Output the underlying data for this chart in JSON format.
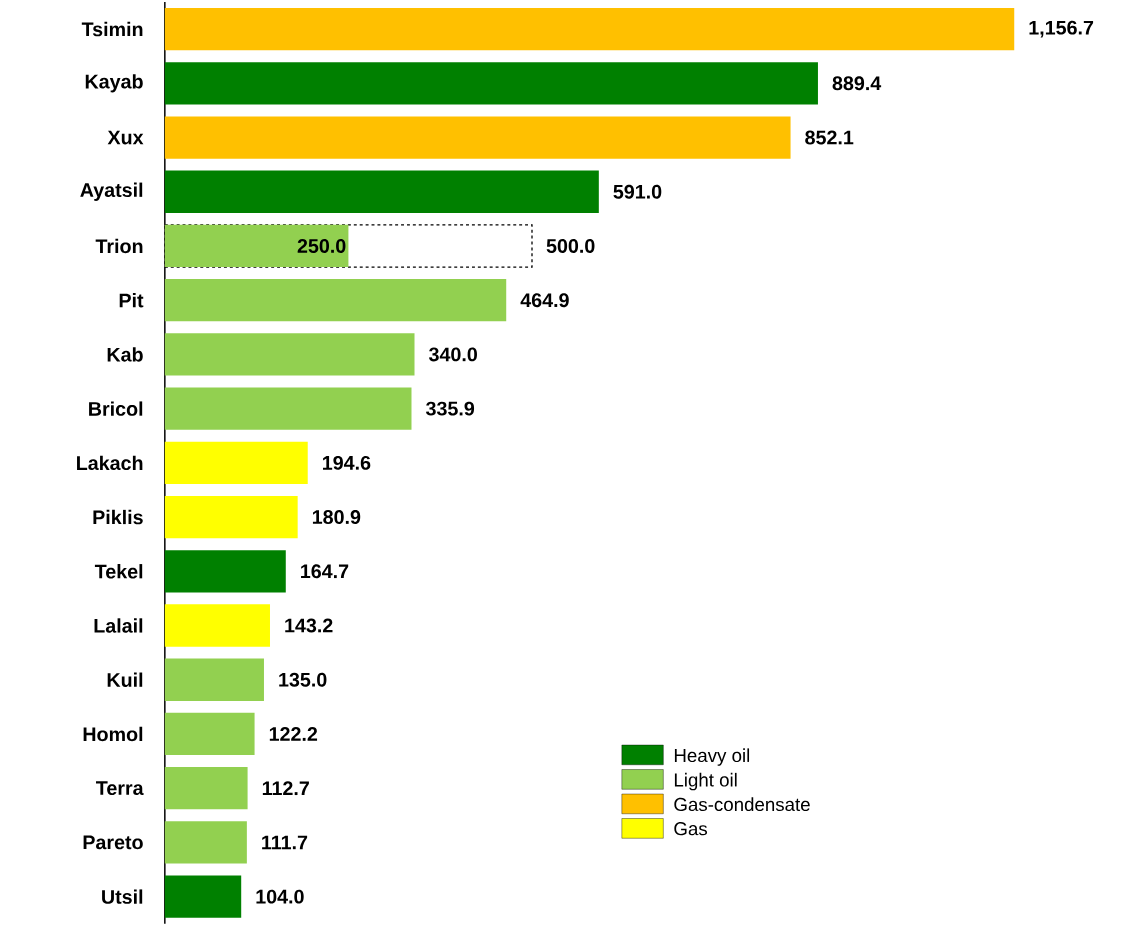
{
  "chart_data": {
    "type": "bar",
    "orientation": "horizontal",
    "legend": "bottom right",
    "categories": [
      "Tsimin",
      "Kayab",
      "Xux",
      "Ayatsil",
      "Trion",
      "Pit",
      "Kab",
      "Bricol",
      "Lakach",
      "Piklis",
      "Tekel",
      "Lalail",
      "Kuil",
      "Homol",
      "Terra",
      "Pareto",
      "Utsil"
    ],
    "series": [
      {
        "color": "#000000",
        "line_style": "dashed",
        "values": [
          null,
          null,
          null,
          null,
          500.0,
          null,
          null,
          null,
          null,
          null,
          null,
          null,
          null,
          null,
          null,
          null,
          null
        ],
        "value_labels": [
          null,
          null,
          null,
          null,
          "500.0",
          null,
          null,
          null,
          null,
          null,
          null,
          null,
          null,
          null,
          null,
          null,
          null
        ]
      },
      {
        "name": "Heavy oil",
        "color": "#008000",
        "values": [
          null,
          889.4,
          null,
          591.0,
          null,
          null,
          null,
          null,
          null,
          null,
          164.7,
          null,
          null,
          null,
          null,
          null,
          104.0
        ],
        "value_labels": [
          null,
          "889.4",
          null,
          "591.0",
          null,
          null,
          null,
          null,
          null,
          null,
          "164.7",
          null,
          null,
          null,
          null,
          null,
          "104.0"
        ]
      },
      {
        "name": "Light oil",
        "color": "#92d050",
        "values": [
          null,
          null,
          null,
          null,
          250.0,
          464.9,
          340.0,
          335.9,
          null,
          null,
          null,
          null,
          135.0,
          122.2,
          112.7,
          111.7,
          null
        ],
        "value_labels": [
          null,
          null,
          null,
          null,
          "250.0",
          "464.9",
          "340.0",
          "335.9",
          null,
          null,
          null,
          null,
          "135.0",
          "122.2",
          "112.7",
          "111.7",
          null
        ]
      },
      {
        "name": "Gas-condensate",
        "color": "#ffc000",
        "values": [
          1156.7,
          null,
          852.1,
          null,
          null,
          null,
          null,
          null,
          null,
          null,
          null,
          null,
          null,
          null,
          null,
          null,
          null
        ],
        "value_labels": [
          "1,156.7",
          null,
          "852.1",
          null,
          null,
          null,
          null,
          null,
          null,
          null,
          null,
          null,
          null,
          null,
          null,
          null,
          null
        ]
      },
      {
        "name": "Gas",
        "color": "#ffff00",
        "values": [
          null,
          null,
          null,
          null,
          null,
          null,
          null,
          null,
          194.6,
          180.9,
          null,
          143.2,
          null,
          null,
          null,
          null,
          null
        ],
        "value_labels": [
          null,
          null,
          null,
          null,
          null,
          null,
          null,
          null,
          "194.6",
          "180.9",
          null,
          "143.2",
          null,
          null,
          null,
          null,
          null
        ]
      }
    ]
  }
}
